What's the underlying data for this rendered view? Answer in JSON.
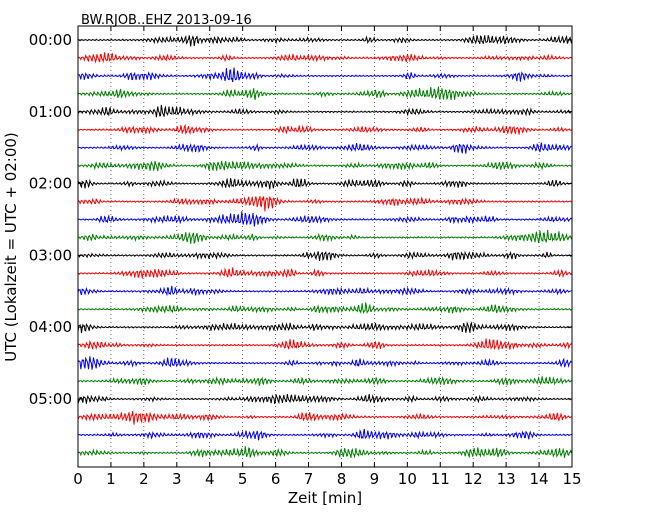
{
  "chart_data": {
    "type": "line",
    "title": "BW.RJOB..EHZ 2013-09-16",
    "xlabel": "Zeit  [min]",
    "ylabel": "UTC (Lokalzeit = UTC + 02:00)",
    "xlim": [
      0,
      15
    ],
    "x_ticks": [
      "0",
      "1",
      "2",
      "3",
      "4",
      "5",
      "6",
      "7",
      "8",
      "9",
      "10",
      "11",
      "12",
      "13",
      "14",
      "15"
    ],
    "y_tick_labels": [
      "00:00",
      "01:00",
      "02:00",
      "03:00",
      "04:00",
      "05:00"
    ],
    "grid": "vertical-dotted",
    "trace_count": 24,
    "trace_interval_min": 15,
    "colors": [
      "#000000",
      "#ff0000",
      "#0000ff",
      "#008000"
    ]
  }
}
